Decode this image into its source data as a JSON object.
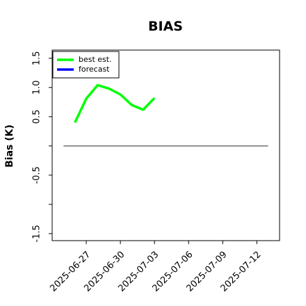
{
  "chart_data": {
    "type": "line",
    "title": "BIAS",
    "y_label": "Bias (K)",
    "x": [
      "2025-06-26",
      "2025-06-27",
      "2025-06-28",
      "2025-06-29",
      "2025-06-30",
      "2025-07-01",
      "2025-07-02",
      "2025-07-03"
    ],
    "series": [
      {
        "name": "best est.",
        "color": "#00ff00",
        "values": [
          0.4,
          0.81,
          1.04,
          0.98,
          0.88,
          0.7,
          0.62,
          0.82
        ]
      },
      {
        "name": "forecast",
        "color": "#0000ff",
        "values": [
          null,
          null,
          null,
          null,
          null,
          null,
          null,
          null
        ]
      }
    ],
    "reference_line": {
      "value": 0,
      "from": "2025-06-25",
      "to": "2025-07-13",
      "color": "#555555"
    },
    "xlim": [
      "2025-06-24",
      "2025-07-14"
    ],
    "xticks": [
      "2025-06-27",
      "2025-06-30",
      "2025-07-03",
      "2025-07-06",
      "2025-07-09",
      "2025-07-12"
    ],
    "highlight_x": {
      "value": "2025-07-03",
      "color": "#228b22"
    },
    "ylim": [
      -1.62,
      1.64
    ],
    "yticks": [
      1.5,
      {
        "value": 1.0,
        "label": "1.0"
      },
      0.5,
      {
        "value": 0,
        "label": null
      },
      -0.5,
      {
        "value": -1.0,
        "label": null
      },
      -1.5
    ],
    "legend": "upper left",
    "grid": false
  }
}
